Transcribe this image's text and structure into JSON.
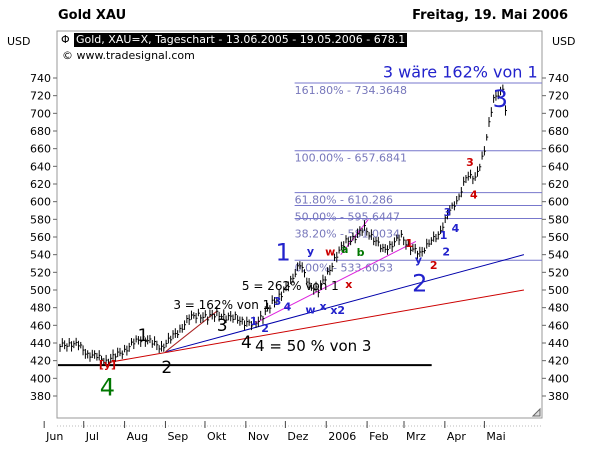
{
  "header": {
    "title": "Gold XAU",
    "date": "Freitag, 19. Mai 2006",
    "legend": "Gold, XAU=X, Tageschart - 13.06.2005 - 19.05.2006 - 678.1",
    "legend_icon": "bar-chart-symbol-icon",
    "copyright": "© www.tradesignal.com"
  },
  "chart_data": {
    "type": "ohlc-bar",
    "currency_left": "USD",
    "currency_right": "USD",
    "ylim": [
      360,
      760
    ],
    "yticks": [
      380,
      400,
      420,
      440,
      460,
      480,
      500,
      520,
      540,
      560,
      580,
      600,
      620,
      640,
      660,
      680,
      700,
      720,
      740
    ],
    "xlim": [
      "2005-06-01",
      "2006-05-31"
    ],
    "xticks": [
      {
        "date": "2005-06-01",
        "label": "Jun"
      },
      {
        "date": "2005-07-01",
        "label": "Jul"
      },
      {
        "date": "2005-08-01",
        "label": "Aug"
      },
      {
        "date": "2005-09-01",
        "label": "Sep"
      },
      {
        "date": "2005-10-01",
        "label": "Okt"
      },
      {
        "date": "2005-11-01",
        "label": "Nov"
      },
      {
        "date": "2005-12-01",
        "label": "Dez"
      },
      {
        "date": "2006-01-01",
        "label": "2006"
      },
      {
        "date": "2006-02-01",
        "label": "Feb"
      },
      {
        "date": "2006-03-01",
        "label": "Mrz"
      },
      {
        "date": "2006-04-01",
        "label": "Apr"
      },
      {
        "date": "2006-05-01",
        "label": "Mai"
      }
    ],
    "series": [
      [
        "2005-06-13",
        436
      ],
      [
        "2005-06-20",
        440
      ],
      [
        "2005-06-27",
        437
      ],
      [
        "2005-07-04",
        428
      ],
      [
        "2005-07-11",
        424
      ],
      [
        "2005-07-18",
        420
      ],
      [
        "2005-07-25",
        425
      ],
      [
        "2005-08-01",
        432
      ],
      [
        "2005-08-08",
        440
      ],
      [
        "2005-08-15",
        446
      ],
      [
        "2005-08-22",
        440
      ],
      [
        "2005-08-29",
        435
      ],
      [
        "2005-09-05",
        445
      ],
      [
        "2005-09-12",
        455
      ],
      [
        "2005-09-19",
        468
      ],
      [
        "2005-09-26",
        472
      ],
      [
        "2005-10-03",
        468
      ],
      [
        "2005-10-10",
        474
      ],
      [
        "2005-10-17",
        468
      ],
      [
        "2005-10-24",
        470
      ],
      [
        "2005-10-31",
        462
      ],
      [
        "2005-11-07",
        462
      ],
      [
        "2005-11-14",
        470
      ],
      [
        "2005-11-21",
        486
      ],
      [
        "2005-11-28",
        495
      ],
      [
        "2005-12-05",
        510
      ],
      [
        "2005-12-12",
        530
      ],
      [
        "2005-12-19",
        505
      ],
      [
        "2005-12-26",
        500
      ],
      [
        "2006-01-02",
        518
      ],
      [
        "2006-01-09",
        540
      ],
      [
        "2006-01-16",
        555
      ],
      [
        "2006-01-23",
        560
      ],
      [
        "2006-01-30",
        570
      ],
      [
        "2006-02-06",
        558
      ],
      [
        "2006-02-13",
        545
      ],
      [
        "2006-02-20",
        552
      ],
      [
        "2006-02-27",
        560
      ],
      [
        "2006-03-06",
        548
      ],
      [
        "2006-03-13",
        540
      ],
      [
        "2006-03-20",
        555
      ],
      [
        "2006-03-27",
        560
      ],
      [
        "2006-04-03",
        588
      ],
      [
        "2006-04-10",
        598
      ],
      [
        "2006-04-17",
        630
      ],
      [
        "2006-04-24",
        625
      ],
      [
        "2006-05-01",
        660
      ],
      [
        "2006-05-08",
        715
      ],
      [
        "2006-05-15",
        730
      ],
      [
        "2006-05-19",
        678.1
      ]
    ],
    "fib_levels": [
      {
        "label": "161.80% - 734.3648",
        "value": 734.3648
      },
      {
        "label": "100.00% - 657.6841",
        "value": 657.6841
      },
      {
        "label": "61.80% - 610.286",
        "value": 610.286
      },
      {
        "label": "50.00% - 595.6447",
        "value": 595.6447
      },
      {
        "label": "38.20% - 581.0034",
        "value": 581.0034
      },
      {
        "label": "0.00% - 533.6053",
        "value": 533.6053
      }
    ],
    "fib_start": "2005-12-08",
    "support_line": {
      "value": 415,
      "from": "2005-06-13",
      "to": "2006-03-22"
    },
    "trend_lines": [
      {
        "name": "red-trendline",
        "color": "#cc0000",
        "from": [
          "2005-07-20",
          418
        ],
        "to": [
          "2006-05-31",
          500
        ]
      },
      {
        "name": "blue-trendline",
        "color": "#0000aa",
        "from": [
          "2005-09-01",
          430
        ],
        "to": [
          "2006-05-31",
          540
        ]
      },
      {
        "name": "darkred-trendline",
        "color": "#aa2222",
        "from": [
          "2005-09-01",
          430
        ],
        "to": [
          "2005-10-10",
          476
        ]
      },
      {
        "name": "magenta-trendline",
        "color": "#dd22dd",
        "from": [
          "2005-11-05",
          460
        ],
        "to": [
          "2006-03-10",
          555
        ]
      },
      {
        "name": "magenta-short-trendline",
        "color": "#dd22dd",
        "from": [
          "2006-01-12",
          540
        ],
        "to": [
          "2006-02-02",
          580
        ]
      }
    ],
    "annotations": [
      {
        "text": "1",
        "color": "#000000",
        "size": "large",
        "date": "2005-08-15",
        "price": 449
      },
      {
        "text": "2",
        "color": "#000000",
        "size": "large",
        "date": "2005-09-02",
        "price": 413
      },
      {
        "text": "3",
        "color": "#000000",
        "size": "large",
        "date": "2005-10-14",
        "price": 474
      },
      {
        "text": "4",
        "color": "#000000",
        "size": "large",
        "date": "2005-11-09",
        "price": 441
      },
      {
        "text": "3 = 162% von 1",
        "color": "#000000",
        "size": "phrase",
        "date": "2005-09-07",
        "price": 483
      },
      {
        "text": "4 = 50 % von 3",
        "color": "#000000",
        "size": "phrase-large",
        "date": "2005-11-08",
        "price": 437
      },
      {
        "text": "5 = 262% von 1",
        "color": "#000000",
        "size": "phrase",
        "date": "2005-10-29",
        "price": 505
      },
      {
        "text": "[y]",
        "color": "#cc0000",
        "size": "small",
        "date": "2005-07-19",
        "price": 400
      },
      {
        "text": "4",
        "color": "#007700",
        "size": "xlarge",
        "date": "2005-07-19",
        "price": 390
      },
      {
        "text": "1",
        "color": "#2222cc",
        "size": "xlarge",
        "date": "2005-12-13",
        "price": 543
      },
      {
        "text": "2",
        "color": "#2222cc",
        "size": "xlarge",
        "date": "2006-03-13",
        "price": 508
      },
      {
        "text": "3",
        "color": "#2222cc",
        "size": "xlarge",
        "date": "2006-05-13",
        "price": 744
      },
      {
        "text": "3 wäre 162% von 1",
        "color": "#2222cc",
        "size": "phrase-xl",
        "date": "2006-02-13",
        "price": 738
      },
      {
        "text": "a",
        "color": "#007700",
        "size": "small",
        "date": "2006-01-15",
        "price": 560
      },
      {
        "text": "b",
        "color": "#007700",
        "size": "small",
        "date": "2006-01-21",
        "price": 534
      },
      {
        "text": "w",
        "color": "#cc0000",
        "size": "small",
        "date": "2006-01-04",
        "price": 532
      },
      {
        "text": "x",
        "color": "#cc0000",
        "size": "small",
        "date": "2006-01-09",
        "price": 520
      },
      {
        "text": "y",
        "color": "#2222cc",
        "size": "small",
        "date": "2006-03-12",
        "price": 523
      },
      {
        "text": "1",
        "color": "#cc0000",
        "size": "small",
        "date": "2006-03-05",
        "price": 553
      },
      {
        "text": "2",
        "color": "#cc0000",
        "size": "small",
        "date": "2006-03-22",
        "price": 528
      },
      {
        "text": "1",
        "color": "#2222cc",
        "size": "small",
        "date": "2006-03-31",
        "price": 562
      },
      {
        "text": "2",
        "color": "#2222cc",
        "size": "small",
        "date": "2006-04-02",
        "price": 550
      },
      {
        "text": "3",
        "color": "#2222cc",
        "size": "small",
        "date": "2006-04-03",
        "price": 588
      },
      {
        "text": "4",
        "color": "#2222cc",
        "size": "small",
        "date": "2006-04-09",
        "price": 572
      },
      {
        "text": "3",
        "color": "#cc0000",
        "size": "small",
        "date": "2006-04-20",
        "price": 645
      },
      {
        "text": "4",
        "color": "#cc0000",
        "size": "small",
        "date": "2006-04-23",
        "price": 608
      },
      {
        "text": "1",
        "color": "#2222cc",
        "size": "small",
        "date": "2005-11-07",
        "price": 467
      },
      {
        "text": "2",
        "color": "#2222cc",
        "size": "small",
        "date": "2005-11-11",
        "price": 457
      },
      {
        "text": "3",
        "color": "#2222cc",
        "size": "small",
        "date": "2005-11-25",
        "price": 494
      },
      {
        "text": "4",
        "color": "#2222cc",
        "size": "small",
        "date": "2005-11-28",
        "price": 481
      },
      {
        "text": "w",
        "color": "#2222cc",
        "size": "small",
        "date": "2005-12-20",
        "price": 478
      },
      {
        "text": "x",
        "color": "#2222cc",
        "size": "small",
        "date": "2005-12-22",
        "price": 493
      },
      {
        "text": "x2",
        "color": "#2222cc",
        "size": "small",
        "date": "2005-12-24",
        "price": 502
      },
      {
        "text": "y",
        "color": "#2222cc",
        "size": "small",
        "date": "2005-12-20",
        "price": 512
      }
    ]
  }
}
